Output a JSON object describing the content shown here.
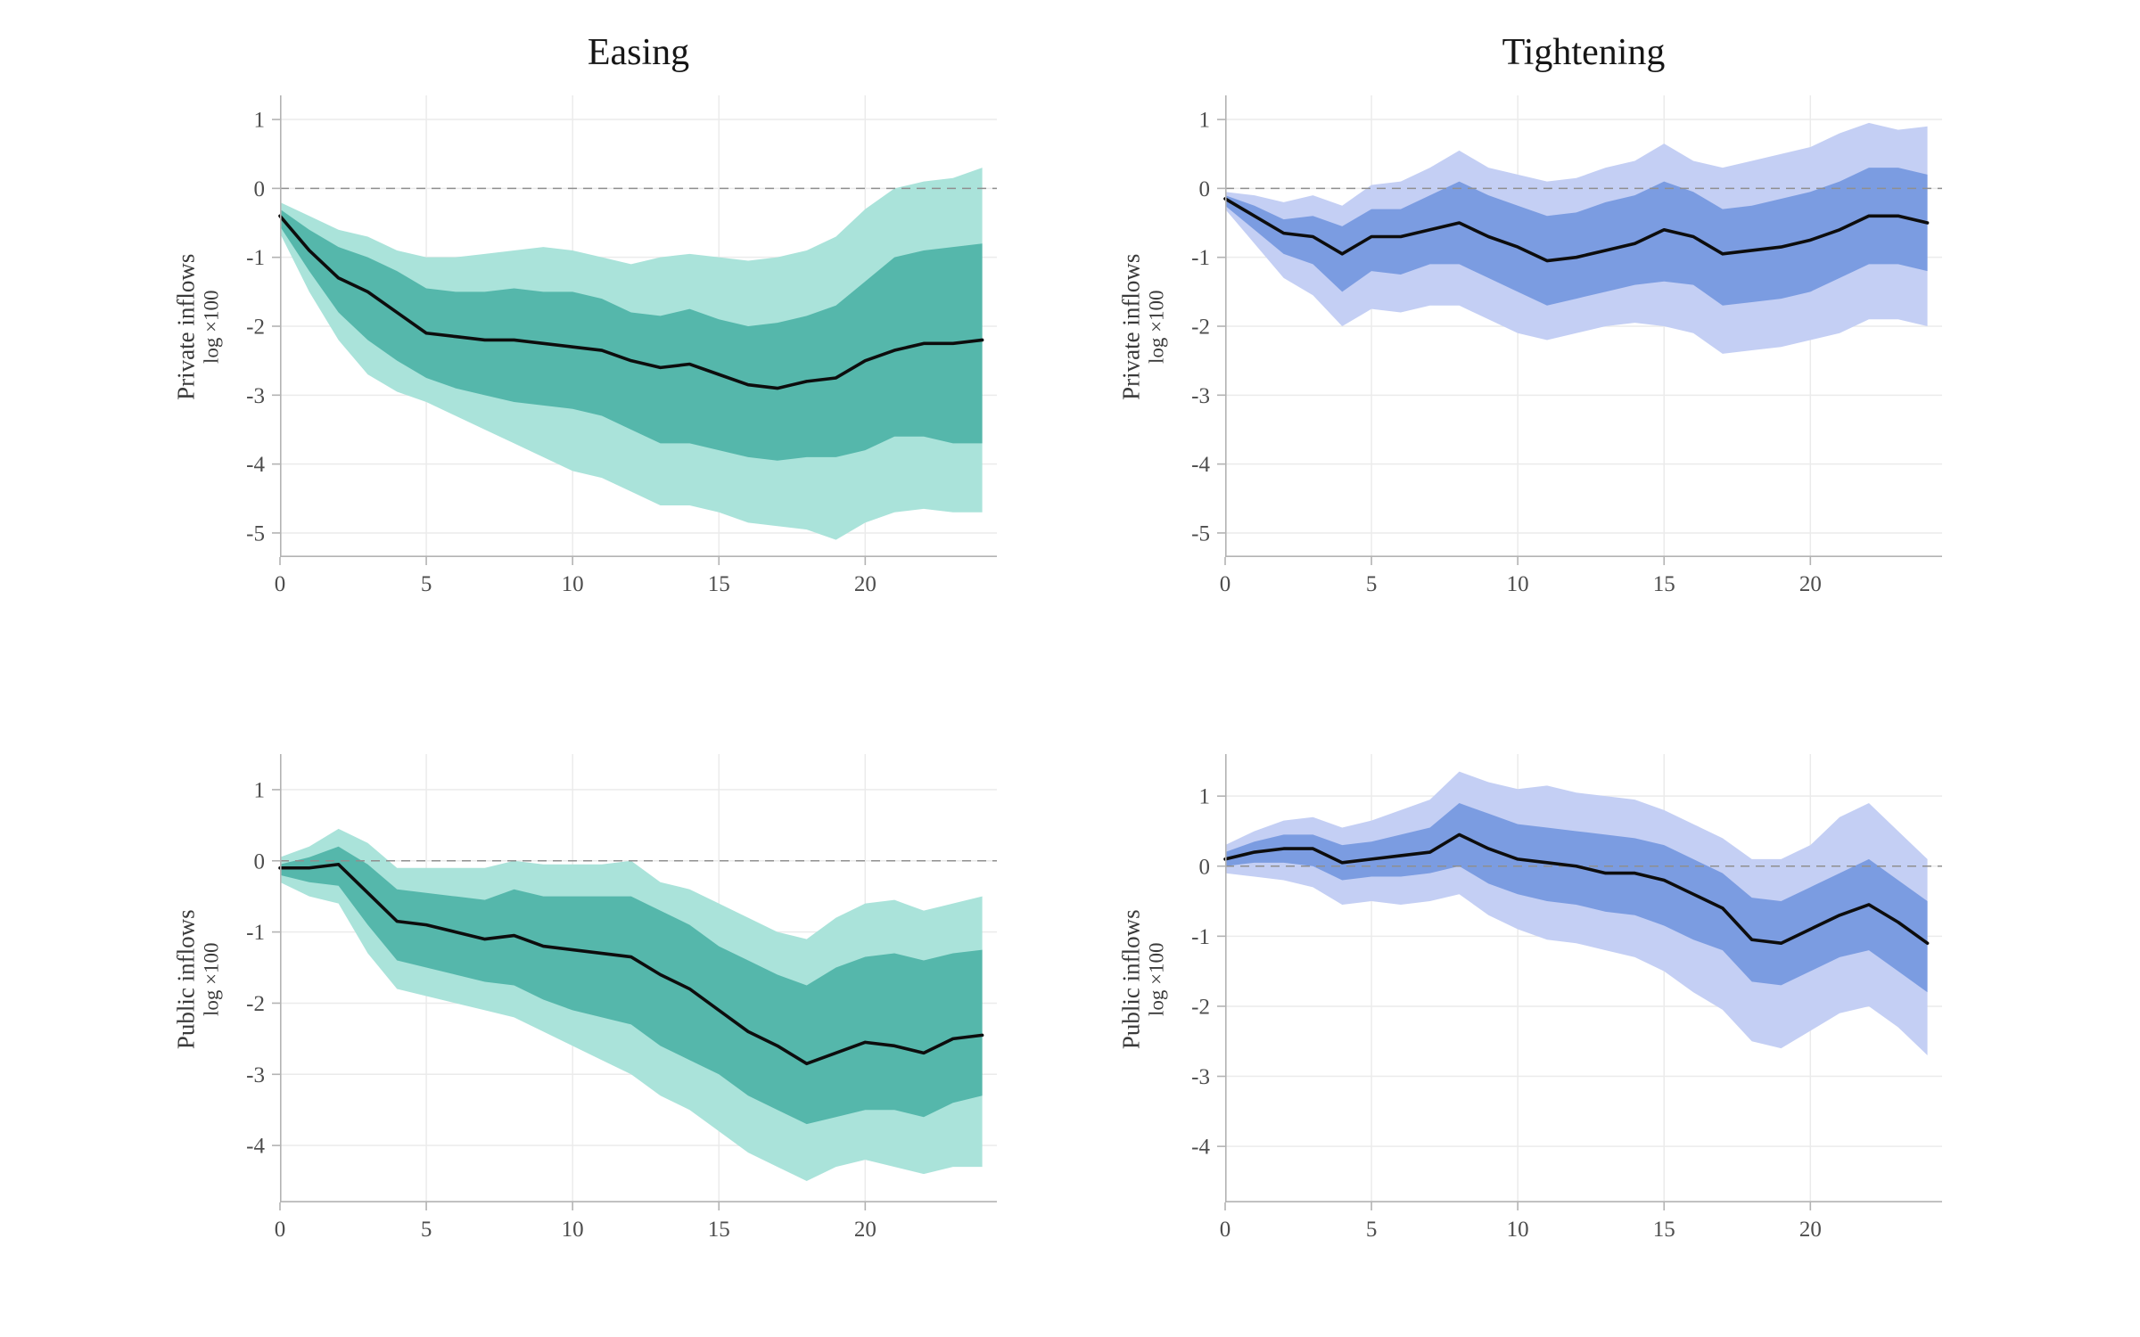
{
  "figure": {
    "column_titles": [
      "Easing",
      "Tightening"
    ],
    "row_labels": [
      "Private inflows",
      "Public inflows"
    ],
    "ylabel_sub": "log ×100"
  },
  "style": {
    "grid_color": "#ebebeb",
    "spine_color": "#b3b3b3",
    "tick_color": "#4d4d4d",
    "zero_color": "#8f8f8f",
    "background": "#ffffff"
  },
  "chart_data": [
    {
      "id": "easing-private",
      "type": "area",
      "title": "Easing",
      "ylabel": "Private inflows",
      "ylabel2": "log ×100",
      "xlim": [
        0,
        24.5
      ],
      "ylim": [
        -5.35,
        1.35
      ],
      "xticks": [
        0,
        5,
        10,
        15,
        20
      ],
      "yticks": [
        1,
        0,
        -1,
        -2,
        -3,
        -4,
        -5
      ],
      "x": [
        0,
        1,
        2,
        3,
        4,
        5,
        6,
        7,
        8,
        9,
        10,
        11,
        12,
        13,
        14,
        15,
        16,
        17,
        18,
        19,
        20,
        21,
        22,
        23,
        24
      ],
      "colors": {
        "band_outer": "#aae3da",
        "band_inner": "#55b7ab",
        "median": "#0d0d0d"
      },
      "series": {
        "median": [
          -0.4,
          -0.9,
          -1.3,
          -1.5,
          -1.8,
          -2.1,
          -2.15,
          -2.2,
          -2.2,
          -2.25,
          -2.3,
          -2.35,
          -2.5,
          -2.6,
          -2.55,
          -2.7,
          -2.85,
          -2.9,
          -2.8,
          -2.75,
          -2.5,
          -2.35,
          -2.25,
          -2.25,
          -2.2
        ],
        "band68_upper": [
          -0.3,
          -0.6,
          -0.85,
          -1.0,
          -1.2,
          -1.45,
          -1.5,
          -1.5,
          -1.45,
          -1.5,
          -1.5,
          -1.6,
          -1.8,
          -1.85,
          -1.75,
          -1.9,
          -2.0,
          -1.95,
          -1.85,
          -1.7,
          -1.35,
          -1.0,
          -0.9,
          -0.85,
          -0.8
        ],
        "band68_lower": [
          -0.55,
          -1.2,
          -1.8,
          -2.2,
          -2.5,
          -2.75,
          -2.9,
          -3.0,
          -3.1,
          -3.15,
          -3.2,
          -3.3,
          -3.5,
          -3.7,
          -3.7,
          -3.8,
          -3.9,
          -3.95,
          -3.9,
          -3.9,
          -3.8,
          -3.6,
          -3.6,
          -3.7,
          -3.7
        ],
        "band90_upper": [
          -0.2,
          -0.4,
          -0.6,
          -0.7,
          -0.9,
          -1.0,
          -1.0,
          -0.95,
          -0.9,
          -0.85,
          -0.9,
          -1.0,
          -1.1,
          -1.0,
          -0.95,
          -1.0,
          -1.05,
          -1.0,
          -0.9,
          -0.7,
          -0.3,
          0.0,
          0.1,
          0.15,
          0.3
        ],
        "band90_lower": [
          -0.65,
          -1.5,
          -2.2,
          -2.7,
          -2.95,
          -3.1,
          -3.3,
          -3.5,
          -3.7,
          -3.9,
          -4.1,
          -4.2,
          -4.4,
          -4.6,
          -4.6,
          -4.7,
          -4.85,
          -4.9,
          -4.95,
          -5.1,
          -4.85,
          -4.7,
          -4.65,
          -4.7,
          -4.7
        ]
      }
    },
    {
      "id": "tightening-private",
      "type": "area",
      "title": "Tightening",
      "ylabel": "Private inflows",
      "ylabel2": "log ×100",
      "xlim": [
        0,
        24.5
      ],
      "ylim": [
        -5.35,
        1.35
      ],
      "xticks": [
        0,
        5,
        10,
        15,
        20
      ],
      "yticks": [
        1,
        0,
        -1,
        -2,
        -3,
        -4,
        -5
      ],
      "x": [
        0,
        1,
        2,
        3,
        4,
        5,
        6,
        7,
        8,
        9,
        10,
        11,
        12,
        13,
        14,
        15,
        16,
        17,
        18,
        19,
        20,
        21,
        22,
        23,
        24
      ],
      "colors": {
        "band_outer": "#c4cff4",
        "band_inner": "#7b9ce1",
        "median": "#0d0d0d"
      },
      "series": {
        "median": [
          -0.15,
          -0.4,
          -0.65,
          -0.7,
          -0.95,
          -0.7,
          -0.7,
          -0.6,
          -0.5,
          -0.7,
          -0.85,
          -1.05,
          -1.0,
          -0.9,
          -0.8,
          -0.6,
          -0.7,
          -0.95,
          -0.9,
          -0.85,
          -0.75,
          -0.6,
          -0.4,
          -0.4,
          -0.5
        ],
        "band68_upper": [
          -0.1,
          -0.25,
          -0.45,
          -0.4,
          -0.55,
          -0.3,
          -0.3,
          -0.1,
          0.1,
          -0.1,
          -0.25,
          -0.4,
          -0.35,
          -0.2,
          -0.1,
          0.1,
          -0.05,
          -0.3,
          -0.25,
          -0.15,
          -0.05,
          0.1,
          0.3,
          0.3,
          0.2
        ],
        "band68_lower": [
          -0.25,
          -0.6,
          -0.95,
          -1.1,
          -1.5,
          -1.2,
          -1.25,
          -1.1,
          -1.1,
          -1.3,
          -1.5,
          -1.7,
          -1.6,
          -1.5,
          -1.4,
          -1.35,
          -1.4,
          -1.7,
          -1.65,
          -1.6,
          -1.5,
          -1.3,
          -1.1,
          -1.1,
          -1.2
        ],
        "band90_upper": [
          -0.05,
          -0.1,
          -0.2,
          -0.1,
          -0.25,
          0.05,
          0.1,
          0.3,
          0.55,
          0.3,
          0.2,
          0.1,
          0.15,
          0.3,
          0.4,
          0.65,
          0.4,
          0.3,
          0.4,
          0.5,
          0.6,
          0.8,
          0.95,
          0.85,
          0.9
        ],
        "band90_lower": [
          -0.3,
          -0.8,
          -1.3,
          -1.55,
          -2.0,
          -1.75,
          -1.8,
          -1.7,
          -1.7,
          -1.9,
          -2.1,
          -2.2,
          -2.1,
          -2.0,
          -1.95,
          -2.0,
          -2.1,
          -2.4,
          -2.35,
          -2.3,
          -2.2,
          -2.1,
          -1.9,
          -1.9,
          -2.0
        ]
      }
    },
    {
      "id": "easing-public",
      "type": "area",
      "title": "",
      "ylabel": "Public inflows",
      "ylabel2": "log ×100",
      "xlim": [
        0,
        24.5
      ],
      "ylim": [
        -4.8,
        1.5
      ],
      "xticks": [
        0,
        5,
        10,
        15,
        20
      ],
      "yticks": [
        1,
        0,
        -1,
        -2,
        -3,
        -4
      ],
      "x": [
        0,
        1,
        2,
        3,
        4,
        5,
        6,
        7,
        8,
        9,
        10,
        11,
        12,
        13,
        14,
        15,
        16,
        17,
        18,
        19,
        20,
        21,
        22,
        23,
        24
      ],
      "colors": {
        "band_outer": "#aae3da",
        "band_inner": "#55b7ab",
        "median": "#0d0d0d"
      },
      "series": {
        "median": [
          -0.1,
          -0.1,
          -0.05,
          -0.45,
          -0.85,
          -0.9,
          -1.0,
          -1.1,
          -1.05,
          -1.2,
          -1.25,
          -1.3,
          -1.35,
          -1.6,
          -1.8,
          -2.1,
          -2.4,
          -2.6,
          -2.85,
          -2.7,
          -2.55,
          -2.6,
          -2.7,
          -2.5,
          -2.45
        ],
        "band68_upper": [
          -0.05,
          0.05,
          0.2,
          -0.05,
          -0.4,
          -0.45,
          -0.5,
          -0.55,
          -0.4,
          -0.5,
          -0.5,
          -0.5,
          -0.5,
          -0.7,
          -0.9,
          -1.2,
          -1.4,
          -1.6,
          -1.75,
          -1.5,
          -1.35,
          -1.3,
          -1.4,
          -1.3,
          -1.25
        ],
        "band68_lower": [
          -0.2,
          -0.3,
          -0.35,
          -0.9,
          -1.4,
          -1.5,
          -1.6,
          -1.7,
          -1.75,
          -1.95,
          -2.1,
          -2.2,
          -2.3,
          -2.6,
          -2.8,
          -3.0,
          -3.3,
          -3.5,
          -3.7,
          -3.6,
          -3.5,
          -3.5,
          -3.6,
          -3.4,
          -3.3
        ],
        "band90_upper": [
          0.05,
          0.2,
          0.45,
          0.25,
          -0.1,
          -0.1,
          -0.1,
          -0.1,
          0.0,
          -0.05,
          -0.05,
          -0.05,
          0.0,
          -0.3,
          -0.4,
          -0.6,
          -0.8,
          -1.0,
          -1.1,
          -0.8,
          -0.6,
          -0.55,
          -0.7,
          -0.6,
          -0.5
        ],
        "band90_lower": [
          -0.3,
          -0.5,
          -0.6,
          -1.3,
          -1.8,
          -1.9,
          -2.0,
          -2.1,
          -2.2,
          -2.4,
          -2.6,
          -2.8,
          -3.0,
          -3.3,
          -3.5,
          -3.8,
          -4.1,
          -4.3,
          -4.5,
          -4.3,
          -4.2,
          -4.3,
          -4.4,
          -4.3,
          -4.3
        ]
      }
    },
    {
      "id": "tightening-public",
      "type": "area",
      "title": "",
      "ylabel": "Public inflows",
      "ylabel2": "log ×100",
      "xlim": [
        0,
        24.5
      ],
      "ylim": [
        -4.8,
        1.6
      ],
      "xticks": [
        0,
        5,
        10,
        15,
        20
      ],
      "yticks": [
        1,
        0,
        -1,
        -2,
        -3,
        -4
      ],
      "x": [
        0,
        1,
        2,
        3,
        4,
        5,
        6,
        7,
        8,
        9,
        10,
        11,
        12,
        13,
        14,
        15,
        16,
        17,
        18,
        19,
        20,
        21,
        22,
        23,
        24
      ],
      "colors": {
        "band_outer": "#c4cff4",
        "band_inner": "#7b9ce1",
        "median": "#0d0d0d"
      },
      "series": {
        "median": [
          0.1,
          0.2,
          0.25,
          0.25,
          0.05,
          0.1,
          0.15,
          0.2,
          0.45,
          0.25,
          0.1,
          0.05,
          0.0,
          -0.1,
          -0.1,
          -0.2,
          -0.4,
          -0.6,
          -1.05,
          -1.1,
          -0.9,
          -0.7,
          -0.55,
          -0.8,
          -1.1
        ],
        "band68_upper": [
          0.2,
          0.35,
          0.45,
          0.45,
          0.3,
          0.35,
          0.45,
          0.55,
          0.9,
          0.75,
          0.6,
          0.55,
          0.5,
          0.45,
          0.4,
          0.3,
          0.1,
          -0.1,
          -0.45,
          -0.5,
          -0.3,
          -0.1,
          0.1,
          -0.2,
          -0.5
        ],
        "band68_lower": [
          0.0,
          0.05,
          0.05,
          0.0,
          -0.2,
          -0.15,
          -0.15,
          -0.1,
          0.0,
          -0.25,
          -0.4,
          -0.5,
          -0.55,
          -0.65,
          -0.7,
          -0.85,
          -1.05,
          -1.2,
          -1.65,
          -1.7,
          -1.5,
          -1.3,
          -1.2,
          -1.5,
          -1.8
        ],
        "band90_upper": [
          0.3,
          0.5,
          0.65,
          0.7,
          0.55,
          0.65,
          0.8,
          0.95,
          1.35,
          1.2,
          1.1,
          1.15,
          1.05,
          1.0,
          0.95,
          0.8,
          0.6,
          0.4,
          0.1,
          0.1,
          0.3,
          0.7,
          0.9,
          0.5,
          0.1
        ],
        "band90_lower": [
          -0.1,
          -0.15,
          -0.2,
          -0.3,
          -0.55,
          -0.5,
          -0.55,
          -0.5,
          -0.4,
          -0.7,
          -0.9,
          -1.05,
          -1.1,
          -1.2,
          -1.3,
          -1.5,
          -1.8,
          -2.05,
          -2.5,
          -2.6,
          -2.35,
          -2.1,
          -2.0,
          -2.3,
          -2.7
        ]
      }
    }
  ]
}
